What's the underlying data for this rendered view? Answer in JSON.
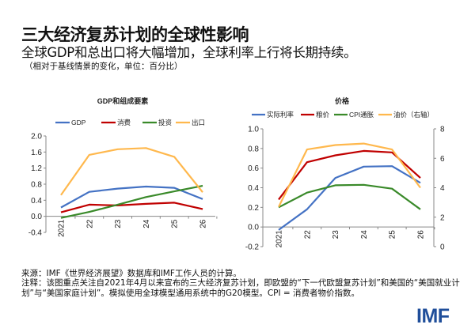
{
  "header": {
    "title": "三大经济复苏计划的全球性影响",
    "subtitle": "全球GDP和总出口将大幅增加，全球利率上行将长期持续。",
    "note": "（相对于基线情景的变化，单位：百分比）"
  },
  "chart_data": [
    {
      "type": "line",
      "title": "GDP和组成要素",
      "categories": [
        "2021",
        "22",
        "23",
        "24",
        "25",
        "26"
      ],
      "ylim": [
        -0.4,
        2.0
      ],
      "yticks": [
        "-0.4",
        "0.0",
        "0.4",
        "0.8",
        "1.2",
        "1.6",
        "2.0"
      ],
      "legend_placement": "top",
      "grid": false,
      "series": [
        {
          "name": "GDP",
          "color": "#4472c4",
          "values": [
            0.22,
            0.61,
            0.69,
            0.74,
            0.71,
            0.43
          ]
        },
        {
          "name": "消费",
          "color": "#c00000",
          "values": [
            0.1,
            0.29,
            0.27,
            0.31,
            0.34,
            0.18
          ]
        },
        {
          "name": "投资",
          "color": "#3a8a2a",
          "values": [
            -0.04,
            0.11,
            0.29,
            0.48,
            0.62,
            0.76
          ]
        },
        {
          "name": "出口",
          "color": "#ffb84d",
          "values": [
            0.53,
            1.53,
            1.67,
            1.7,
            1.48,
            0.6
          ]
        }
      ]
    },
    {
      "type": "line",
      "title": "价格",
      "categories": [
        "2021",
        "22",
        "23",
        "24",
        "25",
        "26"
      ],
      "ylim": [
        -0.2,
        1.0
      ],
      "yticks": [
        "-0.2",
        "0.0",
        "0.2",
        "0.4",
        "0.6",
        "0.8",
        "1.0"
      ],
      "y2lim": [
        0,
        8
      ],
      "y2ticks": [
        "0",
        "2",
        "4",
        "6",
        "8"
      ],
      "legend_placement": "top",
      "grid": false,
      "series": [
        {
          "name": "实际利率",
          "color": "#4472c4",
          "axis": "left",
          "values": [
            -0.03,
            0.18,
            0.5,
            0.615,
            0.62,
            0.45
          ]
        },
        {
          "name": "粮价",
          "color": "#c00000",
          "axis": "left",
          "values": [
            0.28,
            0.66,
            0.73,
            0.775,
            0.76,
            0.5
          ]
        },
        {
          "name": "CPI通胀",
          "color": "#3a8a2a",
          "axis": "left",
          "values": [
            0.2,
            0.35,
            0.425,
            0.43,
            0.39,
            0.18
          ]
        },
        {
          "name": "油价（右轴）",
          "color": "#ffb84d",
          "axis": "right",
          "values": [
            2.7,
            6.6,
            6.9,
            7.0,
            6.6,
            4.0
          ]
        }
      ]
    }
  ],
  "footer": {
    "source": "来源：IMF《世界经济展望》数据库和IMF工作人员的计算。",
    "notes": "注释：该图重点关注自2021年4月以来宣布的三大经济复苏计划，即欧盟的“下一代欧盟复苏计划”和美国的“美国就业计划”与“美国家庭计划”。模拟使用全球模型通用系统中的G20模型。CPI = 消费者物价指数。"
  },
  "logo": "IMF"
}
